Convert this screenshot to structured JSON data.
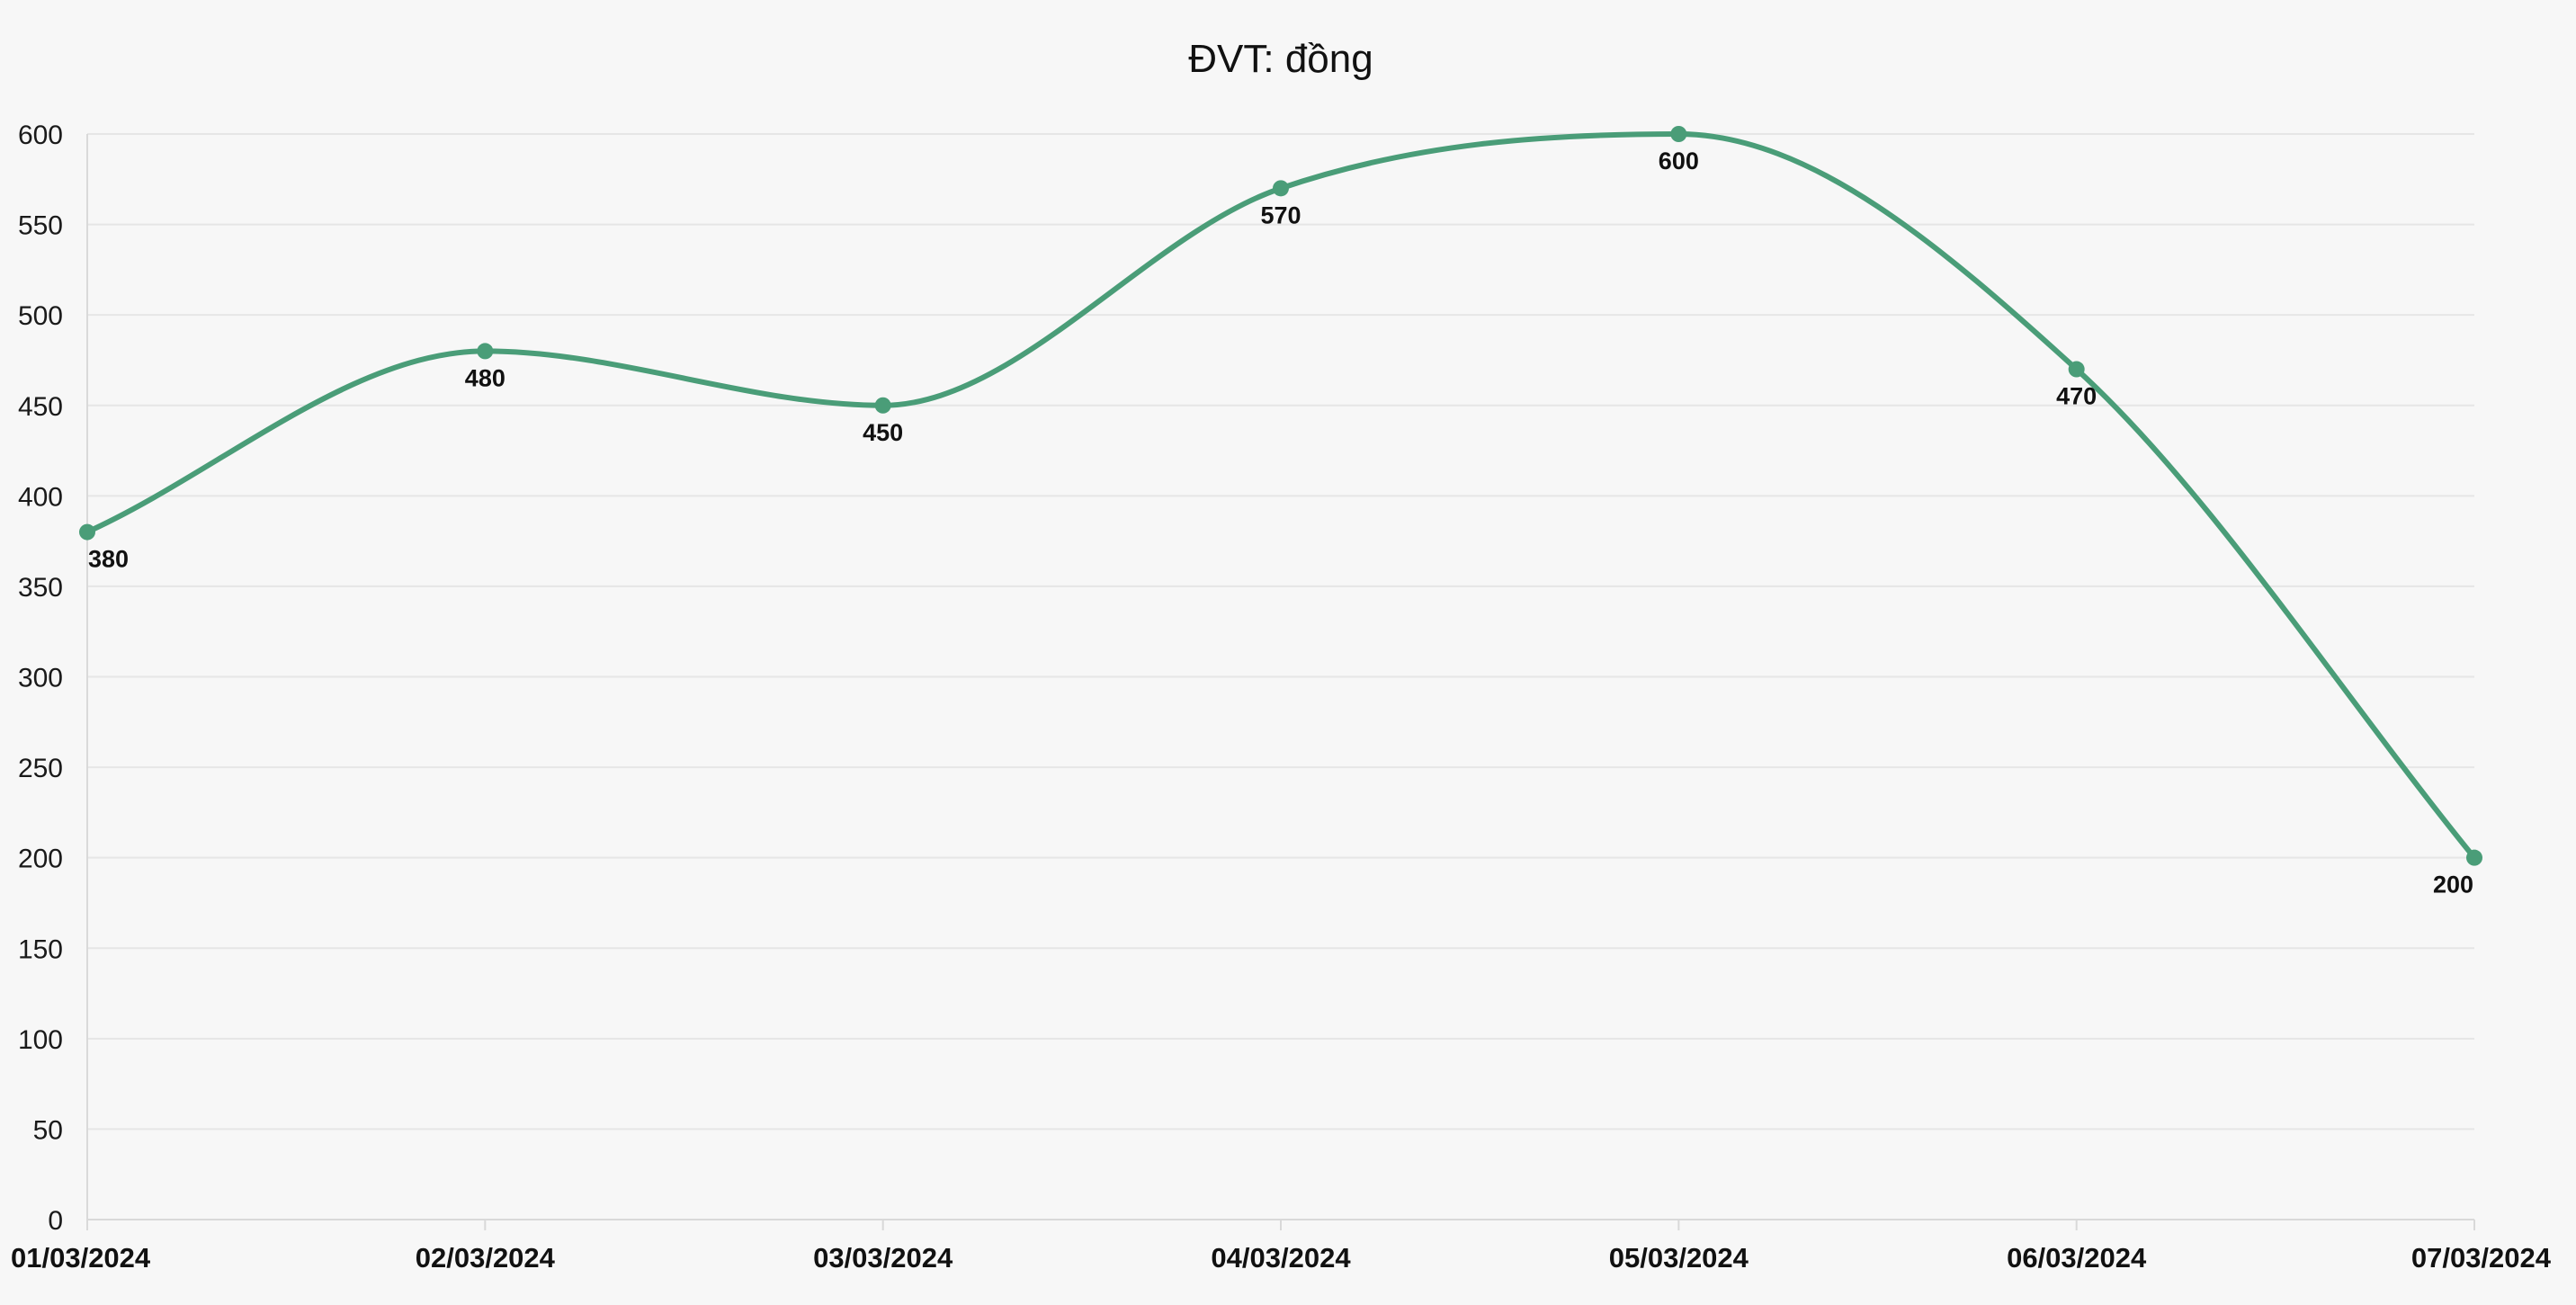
{
  "chart_data": {
    "type": "line",
    "title": "ĐVT: đồng",
    "xlabel": "",
    "ylabel": "",
    "categories": [
      "01/03/2024",
      "02/03/2024",
      "03/03/2024",
      "04/03/2024",
      "05/03/2024",
      "06/03/2024",
      "07/03/2024"
    ],
    "series": [
      {
        "values": [
          380,
          480,
          450,
          570,
          600,
          470,
          200
        ],
        "color": "#4a9d78"
      }
    ],
    "ylim": [
      0,
      600
    ],
    "yticks": [
      0,
      50,
      100,
      150,
      200,
      250,
      300,
      350,
      400,
      450,
      500,
      550,
      600
    ],
    "grid": true,
    "legend": "none",
    "data_labels": [
      "380",
      "480",
      "450",
      "570",
      "600",
      "470",
      "200"
    ],
    "line_style": "smooth",
    "markers": true
  }
}
